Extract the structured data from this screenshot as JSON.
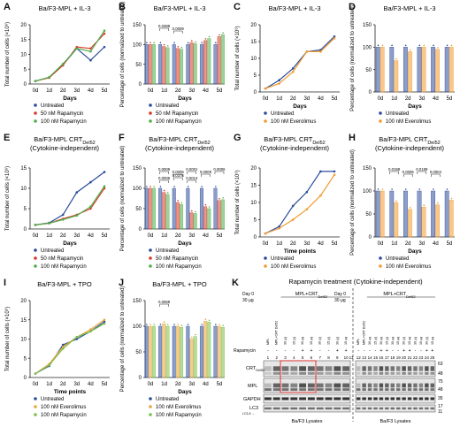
{
  "colors": {
    "untreated": "#2b4c9a",
    "r50": "#d93a2b",
    "r100": "#4fae49",
    "ev100": "#f29b30",
    "tpo_ev": "#e8a53a",
    "tpo_rap": "#7cbf4a"
  },
  "chart_data": [
    {
      "panel": "A",
      "type": "line",
      "title": "Ba/F3-MPL + IL-3",
      "subtitle": "",
      "xlabel": "Days",
      "ylabel": "Total number of cells (×10⁶)",
      "categories": [
        "0d",
        "1d",
        "2d",
        "3d",
        "4d",
        "5d"
      ],
      "ylim": [
        0,
        20
      ],
      "yticks": [
        0,
        5,
        10,
        15,
        20
      ],
      "legend_position": "bottom-left",
      "series": [
        {
          "name": "Untreated",
          "color_key": "untreated",
          "values": [
            1,
            2.2,
            6.5,
            12,
            8,
            12.5
          ]
        },
        {
          "name": "50 nM Rapamycin",
          "color_key": "r50",
          "values": [
            1,
            2.1,
            6.3,
            12.5,
            12,
            17
          ]
        },
        {
          "name": "100 nM Rapamycin",
          "color_key": "r100",
          "values": [
            1,
            2.3,
            6.8,
            12,
            11,
            18
          ]
        }
      ]
    },
    {
      "panel": "B",
      "type": "bar",
      "title": "Ba/F3-MPL + IL-3",
      "subtitle": "",
      "xlabel": "Days",
      "ylabel": "Percentage of cells (normalized to untreated)",
      "categories": [
        "0d",
        "1d",
        "2d",
        "3d",
        "4d",
        "5d"
      ],
      "ylim": [
        0,
        150
      ],
      "yticks": [
        0,
        50,
        100,
        150
      ],
      "legend_position": "bottom",
      "series": [
        {
          "name": "Untreated",
          "color_key": "untreated",
          "values": [
            100,
            100,
            100,
            100,
            100,
            100
          ]
        },
        {
          "name": "50 nM Rapamycin",
          "color_key": "r50",
          "values": [
            100,
            95,
            90,
            105,
            110,
            120
          ]
        },
        {
          "name": "100 nM Rapamycin",
          "color_key": "r100",
          "values": [
            100,
            92,
            88,
            102,
            115,
            125
          ]
        }
      ],
      "annotations": [
        "0.0388",
        "0.0009"
      ]
    },
    {
      "panel": "C",
      "type": "line",
      "title": "Ba/F3-MPL + IL-3",
      "subtitle": "",
      "xlabel": "Days",
      "ylabel": "Total number of cells (×10⁶)",
      "categories": [
        "0d",
        "1d",
        "2d",
        "3d",
        "4d",
        "5d"
      ],
      "ylim": [
        0,
        20
      ],
      "yticks": [
        0,
        5,
        10,
        15,
        20
      ],
      "legend_position": "bottom",
      "series": [
        {
          "name": "Untreated",
          "color_key": "untreated",
          "values": [
            1,
            3.5,
            7,
            12,
            12.5,
            16.5
          ]
        },
        {
          "name": "100 nM Everolimus",
          "color_key": "ev100",
          "values": [
            1,
            2.5,
            6,
            12,
            12,
            16
          ]
        }
      ]
    },
    {
      "panel": "D",
      "type": "bar",
      "title": "Ba/F3-MPL + IL-3",
      "subtitle": "",
      "xlabel": "Days",
      "ylabel": "Percentage of cells (normalized to untreated)",
      "categories": [
        "0d",
        "1d",
        "2d",
        "3d",
        "4d",
        "5d"
      ],
      "ylim": [
        0,
        150
      ],
      "yticks": [
        0,
        50,
        100,
        150
      ],
      "legend_position": "bottom",
      "series": [
        {
          "name": "Untreated",
          "color_key": "untreated",
          "values": [
            100,
            100,
            100,
            100,
            100,
            100
          ]
        },
        {
          "name": "100 nM Everolimus",
          "color_key": "ev100",
          "values": [
            100,
            70,
            90,
            100,
            95,
            100
          ]
        }
      ]
    },
    {
      "panel": "E",
      "type": "line",
      "title": "Ba/F3-MPL CRT",
      "title_sub": "Del52",
      "subtitle": "(Cytokine-independent)",
      "xlabel": "Days",
      "ylabel": "Total number of cells (×10⁶)",
      "categories": [
        "0d",
        "1d",
        "2d",
        "3d",
        "4d",
        "5d"
      ],
      "ylim": [
        0,
        15
      ],
      "yticks": [
        0,
        5,
        10,
        15
      ],
      "legend_position": "bottom",
      "series": [
        {
          "name": "Untreated",
          "color_key": "untreated",
          "values": [
            1,
            1.5,
            3.5,
            9,
            11.5,
            14
          ]
        },
        {
          "name": "50 nM Rapamycin",
          "color_key": "r50",
          "values": [
            1,
            1.4,
            2.5,
            3.5,
            5,
            10
          ]
        },
        {
          "name": "100 nM Rapamycin",
          "color_key": "r100",
          "values": [
            1,
            1.4,
            2.3,
            3.3,
            5.5,
            10.5
          ]
        }
      ]
    },
    {
      "panel": "F",
      "type": "bar",
      "title": "Ba/F3-MPL CRT",
      "title_sub": "Del52",
      "subtitle": "(Cytokine-independent)",
      "xlabel": "Days",
      "ylabel": "Percentage of cells (normalized to untreated)",
      "categories": [
        "0d",
        "1d",
        "2d",
        "3d",
        "4d",
        "5d"
      ],
      "ylim": [
        0,
        150
      ],
      "yticks": [
        0,
        50,
        100,
        150
      ],
      "legend_position": "bottom",
      "series": [
        {
          "name": "Untreated",
          "color_key": "untreated",
          "values": [
            100,
            100,
            100,
            100,
            100,
            100
          ]
        },
        {
          "name": "50 nM Rapamycin",
          "color_key": "r50",
          "values": [
            100,
            90,
            65,
            40,
            55,
            70
          ]
        },
        {
          "name": "100 nM Rapamycin",
          "color_key": "r100",
          "values": [
            100,
            85,
            60,
            38,
            50,
            72
          ]
        }
      ],
      "annotations": [
        "0.0009",
        "0.0006",
        "0.0001",
        "0.0009",
        "0.0006",
        "0.0006",
        "0.0375",
        "0.0014"
      ]
    },
    {
      "panel": "G",
      "type": "line",
      "title": "Ba/F3-MPL CRT",
      "title_sub": "Del52",
      "subtitle": "(Cytokine-independent)",
      "xlabel": "Time points",
      "ylabel": "Total number of cells (×10⁶)",
      "categories": [
        "0d",
        "1d",
        "2d",
        "3d",
        "4d",
        "5d"
      ],
      "ylim": [
        0,
        20
      ],
      "yticks": [
        0,
        5,
        10,
        15,
        20
      ],
      "legend_position": "bottom",
      "series": [
        {
          "name": "Untreated",
          "color_key": "untreated",
          "values": [
            1,
            3,
            9,
            13,
            19,
            19
          ]
        },
        {
          "name": "100 nM Everolimus",
          "color_key": "ev100",
          "values": [
            1,
            2.5,
            5,
            8,
            12,
            18
          ]
        }
      ]
    },
    {
      "panel": "H",
      "type": "bar",
      "title": "Ba/F3-MPL CRT",
      "title_sub": "Del52",
      "subtitle": "(Cytokine-independent)",
      "xlabel": "Days",
      "ylabel": "Percentage of cells (normalized to untreated)",
      "categories": [
        "0d",
        "1d",
        "2d",
        "3d",
        "4d",
        "5d"
      ],
      "ylim": [
        0,
        150
      ],
      "yticks": [
        0,
        50,
        100,
        150
      ],
      "legend_position": "bottom",
      "series": [
        {
          "name": "Untreated",
          "color_key": "untreated",
          "values": [
            100,
            100,
            100,
            100,
            100,
            100
          ]
        },
        {
          "name": "100 nM Everolimus",
          "color_key": "ev100",
          "values": [
            100,
            75,
            60,
            65,
            70,
            80
          ]
        }
      ],
      "annotations": [
        "0.0198",
        "0.0005",
        "0.0199",
        "0.0004"
      ]
    },
    {
      "panel": "I",
      "type": "line",
      "title": "Ba/F3-MPL + TPO",
      "subtitle": "",
      "xlabel": "Time points",
      "ylabel": "Total number of cells (×10⁶)",
      "categories": [
        "0d",
        "1d",
        "2d",
        "3d",
        "4d",
        "5d"
      ],
      "ylim": [
        0,
        20
      ],
      "yticks": [
        0,
        5,
        10,
        15,
        20
      ],
      "legend_position": "bottom",
      "series": [
        {
          "name": "Untreated",
          "color_key": "untreated",
          "values": [
            1,
            3,
            8.5,
            10,
            12,
            14.5
          ]
        },
        {
          "name": "100 nM Everolimus",
          "color_key": "tpo_ev",
          "values": [
            1,
            3.5,
            8,
            10.5,
            12.5,
            15
          ]
        },
        {
          "name": "100 nM Rapamycin",
          "color_key": "tpo_rap",
          "values": [
            1,
            3.2,
            7.5,
            10.5,
            12,
            14
          ]
        }
      ]
    },
    {
      "panel": "J",
      "type": "bar",
      "title": "Ba/F3-MPL + TPO",
      "subtitle": "",
      "xlabel": "Days",
      "ylabel": "Percentage of cells (normalized to untreated)",
      "categories": [
        "0d",
        "1d",
        "2d",
        "3d",
        "4d",
        "5d"
      ],
      "ylim": [
        0,
        150
      ],
      "yticks": [
        0,
        50,
        100,
        150
      ],
      "legend_position": "bottom",
      "series": [
        {
          "name": "Untreated",
          "color_key": "untreated",
          "values": [
            100,
            100,
            100,
            100,
            100,
            100
          ]
        },
        {
          "name": "100 nM Everolimus",
          "color_key": "tpo_ev",
          "values": [
            100,
            105,
            100,
            75,
            110,
            100
          ]
        },
        {
          "name": "100 nM Rapamycin",
          "color_key": "tpo_rap",
          "values": [
            100,
            100,
            98,
            80,
            108,
            98
          ]
        }
      ],
      "annotations": [
        "0.0068"
      ]
    }
  ],
  "panel_k": {
    "label": "K",
    "title": "Rapamycin treatment (Cytokine-independent)",
    "left_group": {
      "day0": "Day 0",
      "day0_dose": "30 μg",
      "header": "MPL+CRT",
      "header_sub": "Del52",
      "day_labels": [
        "Day 1",
        "Day 2"
      ],
      "col_labels": [
        "MPL",
        "MPL+CRT Del52",
        "30 μg",
        "15 μg",
        "30 μg",
        "15 μg",
        "30 μg",
        "15 μg",
        "30 μg",
        "15 μg"
      ],
      "rapamycin_signs": [
        "-",
        "-",
        "-",
        "-",
        "+",
        "+",
        "-",
        "-",
        "+",
        "+"
      ],
      "lane_numbers": [
        "1",
        "2",
        "3",
        "4",
        "5",
        "6",
        "7",
        "8",
        "9",
        "10"
      ]
    },
    "right_group": {
      "day0": "Day 0",
      "day0_dose": "30 μg",
      "header": "MPL+CRT",
      "header_sub": "Del52",
      "day_labels": [
        "Day 3",
        "Day 4",
        "Day 5"
      ],
      "col_labels": [
        "MPL",
        "MPL+CRT Del52",
        "30 μg",
        "15 μg",
        "30 μg",
        "15 μg",
        "30 μg",
        "15 μg",
        "30 μg",
        "15 μg",
        "30 μg",
        "15 μg",
        "30 μg",
        "15 μg"
      ],
      "rapamycin_signs": [
        "-",
        "-",
        "-",
        "-",
        "+",
        "+",
        "-",
        "-",
        "+",
        "+",
        "-",
        "-",
        "+",
        "+"
      ],
      "lane_numbers": [
        "12",
        "13",
        "14",
        "15",
        "16",
        "17",
        "18",
        "19",
        "20",
        "21",
        "22",
        "23",
        "24",
        "25"
      ]
    },
    "lane_prefix_label": "Rapamycin",
    "blot_labels": [
      "CRT",
      "MPL",
      "GAPDH",
      "LC3"
    ],
    "crt_sub": "Del52",
    "lc3_sub": "LC3-II →",
    "mw_markers": [
      "63",
      "48",
      "75",
      "48",
      "35",
      "17",
      "11"
    ],
    "footer_left": "Ba/F3 Lysates",
    "footer_right": "Ba/F3 Lysates",
    "lane_11": "11"
  }
}
